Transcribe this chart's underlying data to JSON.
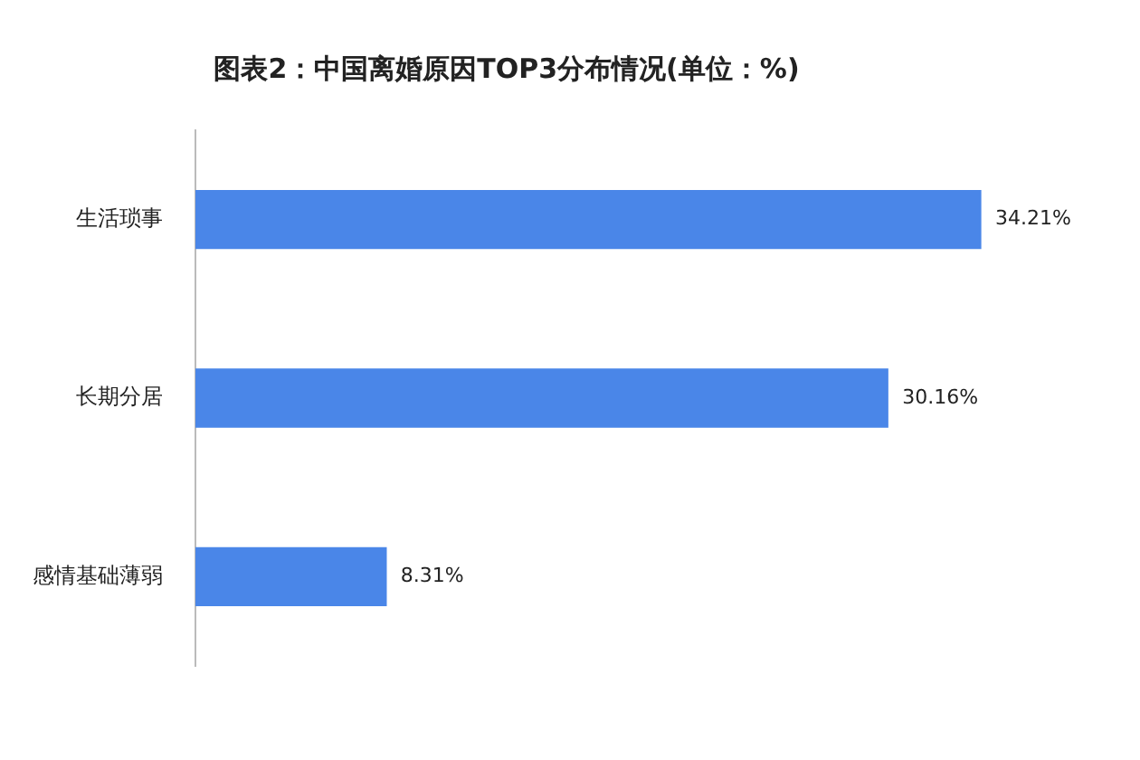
{
  "chart_data": {
    "type": "bar",
    "orientation": "horizontal",
    "title": "图表2：中国离婚原因TOP3分布情况(单位：%)",
    "categories": [
      "生活琐事",
      "长期分居",
      "感情基础薄弱"
    ],
    "values": [
      34.21,
      30.16,
      8.31
    ],
    "value_labels": [
      "34.21%",
      "30.16%",
      "8.31%"
    ],
    "color": "#4a86e8",
    "tick_labels": "y",
    "grid": false,
    "legend": false
  }
}
